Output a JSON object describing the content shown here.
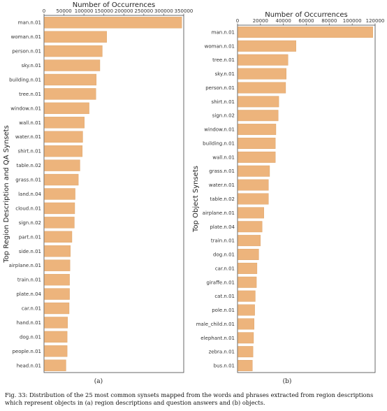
{
  "chart_data": [
    {
      "type": "bar",
      "orientation": "horizontal",
      "xlabel": "Number of Occurrences",
      "ylabel": "Top Region Description and QA Synsets",
      "xlim": [
        0,
        350000
      ],
      "xticks": [
        0,
        50000,
        100000,
        150000,
        200000,
        250000,
        300000,
        350000
      ],
      "grid": false,
      "bar_color": "#EDB47C",
      "sublabel": "(a)",
      "categories": [
        "man.n.01",
        "woman.n.01",
        "person.n.01",
        "sky.n.01",
        "building.n.01",
        "tree.n.01",
        "window.n.01",
        "wall.n.01",
        "water.n.01",
        "shirt.n.01",
        "table.n.02",
        "grass.n.01",
        "land.n.04",
        "cloud.n.01",
        "sign.n.02",
        "part.n.01",
        "side.n.01",
        "airplane.n.01",
        "train.n.01",
        "plate.n.04",
        "car.n.01",
        "hand.n.01",
        "dog.n.01",
        "people.n.01",
        "head.n.01"
      ],
      "values": [
        345000,
        157000,
        146000,
        140000,
        131000,
        130000,
        113000,
        101000,
        97000,
        96000,
        90000,
        86000,
        78000,
        77000,
        76000,
        70000,
        66000,
        65000,
        64000,
        64000,
        63000,
        59000,
        58000,
        58000,
        55000
      ]
    },
    {
      "type": "bar",
      "orientation": "horizontal",
      "xlabel": "Number of Occurrences",
      "ylabel": "Top Object Synsets",
      "xlim": [
        0,
        120000
      ],
      "xticks": [
        0,
        20000,
        40000,
        60000,
        80000,
        100000,
        120000
      ],
      "grid": false,
      "bar_color": "#EDB47C",
      "sublabel": "(b)",
      "categories": [
        "man.n.01",
        "woman.n.01",
        "tree.n.01",
        "sky.n.01",
        "person.n.01",
        "shirt.n.01",
        "sign.n.02",
        "window.n.01",
        "building.n.01",
        "wall.n.01",
        "grass.n.01",
        "water.n.01",
        "table.n.02",
        "airplane.n.01",
        "plate.n.04",
        "train.n.01",
        "dog.n.01",
        "car.n.01",
        "giraffe.n.01",
        "cat.n.01",
        "pole.n.01",
        "male_child.n.01",
        "elephant.n.01",
        "zebra.n.01",
        "bus.n.01"
      ],
      "values": [
        118000,
        51000,
        44000,
        42500,
        42000,
        36000,
        35500,
        33500,
        33000,
        33000,
        28000,
        27000,
        27000,
        23000,
        21500,
        20000,
        18500,
        17000,
        16500,
        15500,
        15000,
        14500,
        14000,
        13500,
        13000
      ]
    }
  ],
  "caption": "Fig. 33: Distribution of the 25 most common synsets mapped from the words and phrases extracted from region descriptions which represent objects in (a) region descriptions and question answers and (b) objects."
}
